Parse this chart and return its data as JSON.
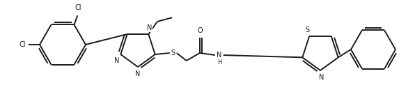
{
  "background_color": "#ffffff",
  "line_color": "#1a1a1a",
  "line_width": 1.4,
  "font_size": 7.0,
  "fig_width": 5.96,
  "fig_height": 1.42,
  "xlim": [
    0,
    596
  ],
  "ylim": [
    0,
    142
  ]
}
